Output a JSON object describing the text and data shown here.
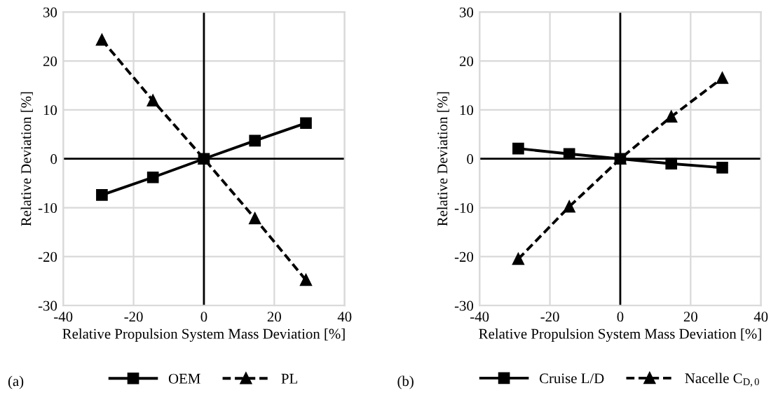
{
  "chart_data": [
    {
      "type": "line",
      "xlabel": "Relative Propulsion System Mass Deviation [%]",
      "ylabel": "Relative Deviation [%]",
      "x": [
        -29,
        -14.5,
        0,
        14.5,
        29
      ],
      "xlim": [
        -40,
        40
      ],
      "xticks": [
        -40,
        -20,
        0,
        20,
        40
      ],
      "ylim": [
        -30,
        30
      ],
      "yticks": [
        -30,
        -20,
        -10,
        0,
        10,
        20,
        30
      ],
      "grid": true,
      "legend": "bottom",
      "annotations": [
        "(a)"
      ],
      "series": [
        {
          "name": "OEM",
          "color": "#000000",
          "marker": "square",
          "line_style": "solid",
          "values": [
            -7.4,
            -3.8,
            0,
            3.7,
            7.3
          ]
        },
        {
          "name": "PL",
          "color": "#000000",
          "marker": "triangle",
          "line_style": "dashed",
          "values": [
            24.3,
            11.9,
            0,
            -12.2,
            -24.8
          ]
        }
      ]
    },
    {
      "type": "line",
      "xlabel": "Relative Propulsion System Mass Deviation [%]",
      "ylabel": "Relative Deviation [%]",
      "x": [
        -29,
        -14.5,
        0,
        14.5,
        29
      ],
      "xlim": [
        -40,
        40
      ],
      "xticks": [
        -40,
        -20,
        0,
        20,
        40
      ],
      "ylim": [
        -30,
        30
      ],
      "yticks": [
        -30,
        -20,
        -10,
        0,
        10,
        20,
        30
      ],
      "grid": true,
      "legend": "bottom",
      "annotations": [
        "(b)"
      ],
      "series": [
        {
          "name": "Cruise L/D",
          "color": "#000000",
          "marker": "square",
          "line_style": "solid",
          "values": [
            2.1,
            1.0,
            0,
            -1.0,
            -1.8
          ]
        },
        {
          "name": "Nacelle C$_{D,0}$",
          "color": "#000000",
          "marker": "triangle",
          "line_style": "dashed",
          "values": [
            -20.5,
            -9.8,
            0,
            8.6,
            16.5
          ]
        }
      ]
    }
  ]
}
